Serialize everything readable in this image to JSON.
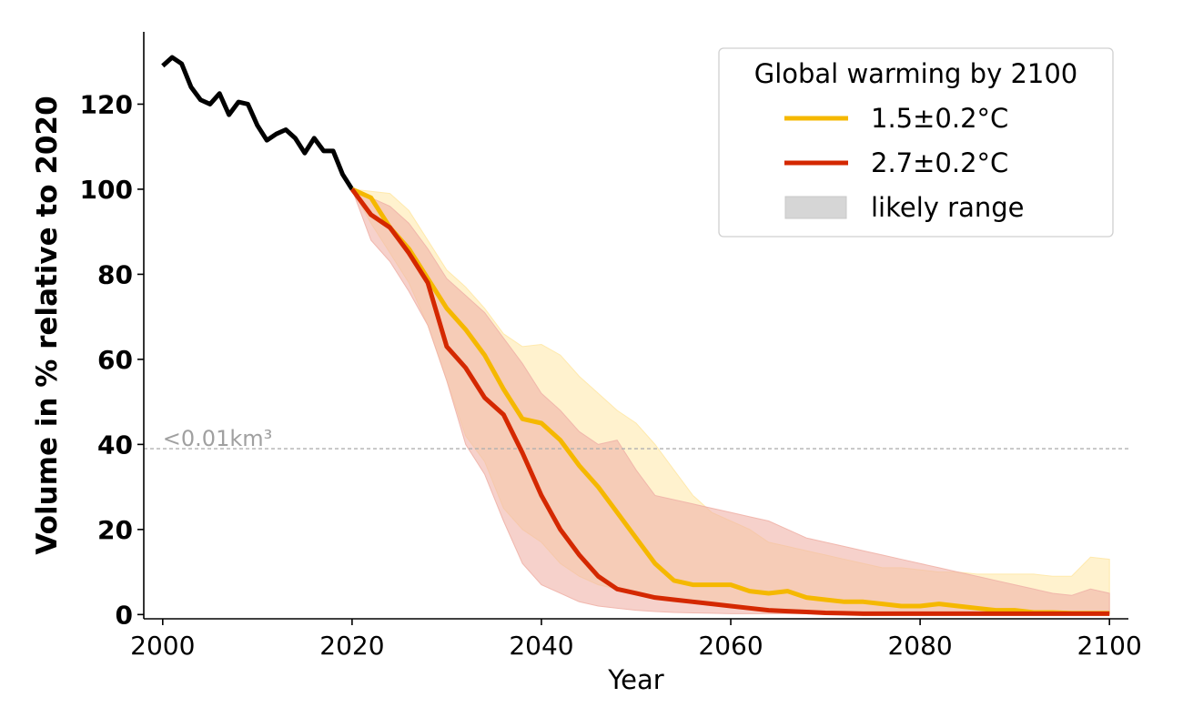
{
  "chart_data": {
    "type": "line",
    "xlabel": "Year",
    "ylabel": "Volume in % relative to 2020",
    "xlim": [
      1998,
      2102
    ],
    "ylim": [
      -1,
      137
    ],
    "xticks": [
      2000,
      2020,
      2040,
      2060,
      2080,
      2100
    ],
    "yticks": [
      0,
      20,
      40,
      60,
      80,
      100,
      120
    ],
    "xtick_labels": [
      "2000",
      "2020",
      "2040",
      "2060",
      "2080",
      "2100"
    ],
    "ytick_labels": [
      "0",
      "20",
      "40",
      "60",
      "80",
      "100",
      "120"
    ],
    "grid": false,
    "threshold": {
      "y": 39,
      "label": "<0.01km³",
      "color": "#b0b0b0"
    },
    "legend": {
      "position": "top-right",
      "title": "Global warming by 2100",
      "entries": [
        {
          "label": "1.5±0.2°C",
          "kind": "line",
          "color": "#f5b800"
        },
        {
          "label": "2.7±0.2°C",
          "kind": "line",
          "color": "#d42800"
        },
        {
          "label": "likely range",
          "kind": "patch",
          "color": "#d6d6d6"
        }
      ]
    },
    "series": [
      {
        "color": "#000000",
        "x": [
          2000,
          2001,
          2002,
          2003,
          2004,
          2005,
          2006,
          2007,
          2008,
          2009,
          2010,
          2011,
          2012,
          2013,
          2014,
          2015,
          2016,
          2017,
          2018,
          2019,
          2020
        ],
        "y": [
          129,
          131,
          129.5,
          124,
          121,
          120,
          122.5,
          117.5,
          120.5,
          120,
          115,
          111.5,
          113,
          114,
          112,
          108.5,
          112,
          109,
          109,
          103.5,
          100
        ]
      },
      {
        "name": "1.5±0.2°C",
        "color": "#f5b800",
        "band_color": "#ffe8a6",
        "x": [
          2020,
          2022,
          2024,
          2026,
          2028,
          2030,
          2032,
          2034,
          2036,
          2038,
          2040,
          2042,
          2044,
          2046,
          2048,
          2050,
          2052,
          2054,
          2056,
          2058,
          2060,
          2062,
          2064,
          2066,
          2068,
          2070,
          2072,
          2074,
          2076,
          2078,
          2080,
          2082,
          2084,
          2086,
          2088,
          2090,
          2092,
          2094,
          2096,
          2098,
          2100
        ],
        "y": [
          100,
          98,
          91,
          86,
          79,
          72,
          67,
          61,
          53,
          46,
          45,
          41,
          35,
          30,
          24,
          18,
          12,
          8,
          7,
          7,
          7,
          5.5,
          5,
          5.5,
          4,
          3.5,
          3,
          3,
          2.5,
          2,
          2,
          2.5,
          2,
          1.5,
          1,
          1,
          0.5,
          0.5,
          0.3,
          0.3,
          0.3
        ],
        "lower": [
          100,
          92,
          85,
          78,
          68,
          55,
          42,
          36,
          25,
          20,
          17,
          12,
          9,
          7,
          6,
          5,
          4,
          3.5,
          3,
          2.5,
          2,
          1.5,
          1,
          0.8,
          0.6,
          0.5,
          0.4,
          0.3,
          0.2,
          0.2,
          0.2,
          0.2,
          0.2,
          0.2,
          0.2,
          0.2,
          0.2,
          0.2,
          0.2,
          0.2,
          0.2
        ],
        "upper": [
          100,
          99.5,
          99,
          95,
          88,
          81,
          77,
          72,
          66,
          63,
          63.5,
          61,
          56,
          52,
          48,
          45,
          40,
          34,
          28,
          24,
          22,
          20,
          17,
          16,
          15,
          14,
          13,
          12,
          11,
          11,
          10.5,
          10,
          10,
          9.5,
          9.5,
          9.5,
          9.5,
          9,
          9,
          13.5,
          13
        ]
      },
      {
        "name": "2.7±0.2°C",
        "color": "#d42800",
        "band_color": "#f0b2a8",
        "x": [
          2020,
          2022,
          2024,
          2026,
          2028,
          2030,
          2032,
          2034,
          2036,
          2038,
          2040,
          2042,
          2044,
          2046,
          2048,
          2050,
          2052,
          2054,
          2056,
          2058,
          2060,
          2062,
          2064,
          2066,
          2068,
          2070,
          2072,
          2074,
          2076,
          2078,
          2080,
          2082,
          2084,
          2086,
          2088,
          2090,
          2092,
          2094,
          2096,
          2098,
          2100
        ],
        "y": [
          100,
          94,
          91,
          85,
          78,
          63,
          58,
          51,
          47,
          38,
          28,
          20,
          14,
          9,
          6,
          5,
          4,
          3.5,
          3,
          2.5,
          2,
          1.5,
          1,
          0.8,
          0.6,
          0.4,
          0.3,
          0.2,
          0.2,
          0.2,
          0.2,
          0.2,
          0.2,
          0.2,
          0.2,
          0.2,
          0.2,
          0.2,
          0.2,
          0.2,
          0.2
        ],
        "lower": [
          100,
          88,
          83,
          76,
          68,
          55,
          40,
          33,
          22,
          12,
          7,
          5,
          3,
          2,
          1.5,
          1,
          0.7,
          0.5,
          0.4,
          0.3,
          0.2,
          0.2,
          0.2,
          0.2,
          0.2,
          0.2,
          0.2,
          0.2,
          0.2,
          0.2,
          0.2,
          0.2,
          0.2,
          0.2,
          0.2,
          0.2,
          0.2,
          0.2,
          0.2,
          0.2,
          0.2
        ],
        "upper": [
          100,
          98,
          96,
          92,
          86,
          79,
          75,
          71,
          65,
          59,
          52,
          48,
          43,
          40,
          41,
          34,
          28,
          27,
          26,
          25,
          24,
          23,
          22,
          20,
          18,
          17,
          16,
          15,
          14,
          13,
          12,
          11,
          10,
          9,
          8,
          7,
          6,
          5,
          4.5,
          6,
          5
        ]
      }
    ]
  }
}
